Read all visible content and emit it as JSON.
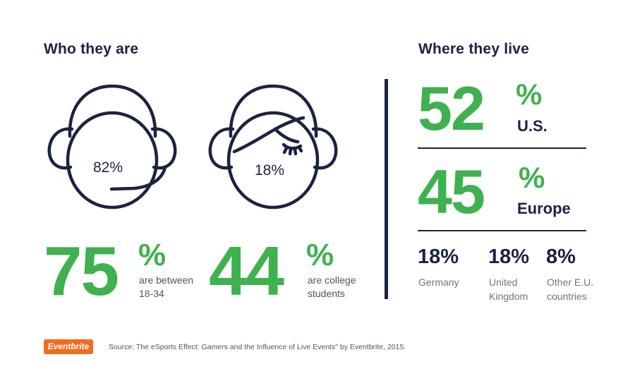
{
  "who": {
    "title": "Who they are",
    "male_pct": "82%",
    "female_pct": "18%",
    "age_stat": {
      "value": "75",
      "unit": "%",
      "line1": "are between",
      "line2": "18-34"
    },
    "college_stat": {
      "value": "44",
      "unit": "%",
      "line1": "are college",
      "line2": "students"
    }
  },
  "where": {
    "title": "Where they live",
    "us": {
      "value": "52",
      "unit": "%",
      "label": "U.S."
    },
    "europe": {
      "value": "45",
      "unit": "%",
      "label": "Europe"
    },
    "breakdown": [
      {
        "pct": "18%",
        "line1": "Germany",
        "line2": ""
      },
      {
        "pct": "18%",
        "line1": "United",
        "line2": "Kingdom"
      },
      {
        "pct": "8%",
        "line1": "Other E.U.",
        "line2": "countries"
      }
    ]
  },
  "footer": {
    "logo": "Eventbrite",
    "source": "Source: The eSports Effect: Gamers and the Influence of Live Events\" by Eventbrite, 2015."
  },
  "colors": {
    "navy": "#1a2340",
    "green": "#3fb14f",
    "orange": "#f26b21"
  },
  "icons": [
    "male-gamer-headset-icon",
    "female-gamer-headset-icon"
  ]
}
